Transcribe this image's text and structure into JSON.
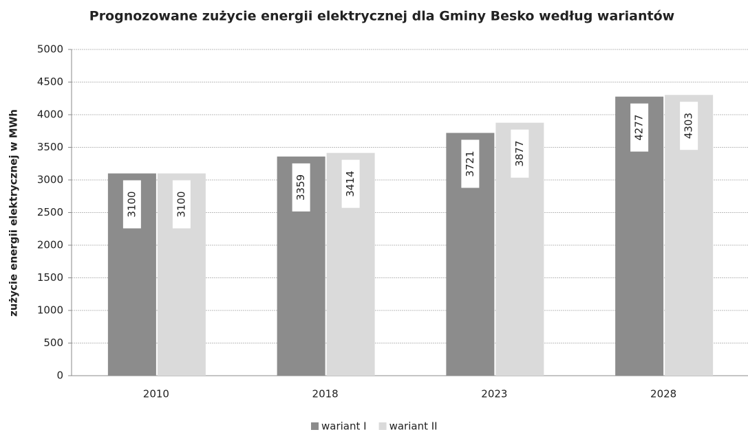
{
  "chart_data": {
    "type": "bar",
    "title": "Prognozowane zużycie energii elektrycznej dla Gminy Besko według wariantów",
    "y_label": "zużycie energii  elektrycznej w MWh",
    "categories": [
      "2010",
      "2018",
      "2023",
      "2028"
    ],
    "series": [
      {
        "name": "wariant I",
        "color": "#8c8c8c",
        "values": [
          3100,
          3359,
          3721,
          4277
        ]
      },
      {
        "name": "wariant II",
        "color": "#dadada",
        "values": [
          3100,
          3414,
          3877,
          4303
        ]
      }
    ],
    "ylim": [
      0,
      5000
    ],
    "yticks": [
      0,
      500,
      1000,
      1500,
      2000,
      2500,
      3000,
      3500,
      4000,
      4500,
      5000
    ],
    "grid": true,
    "legend": "bottom"
  }
}
